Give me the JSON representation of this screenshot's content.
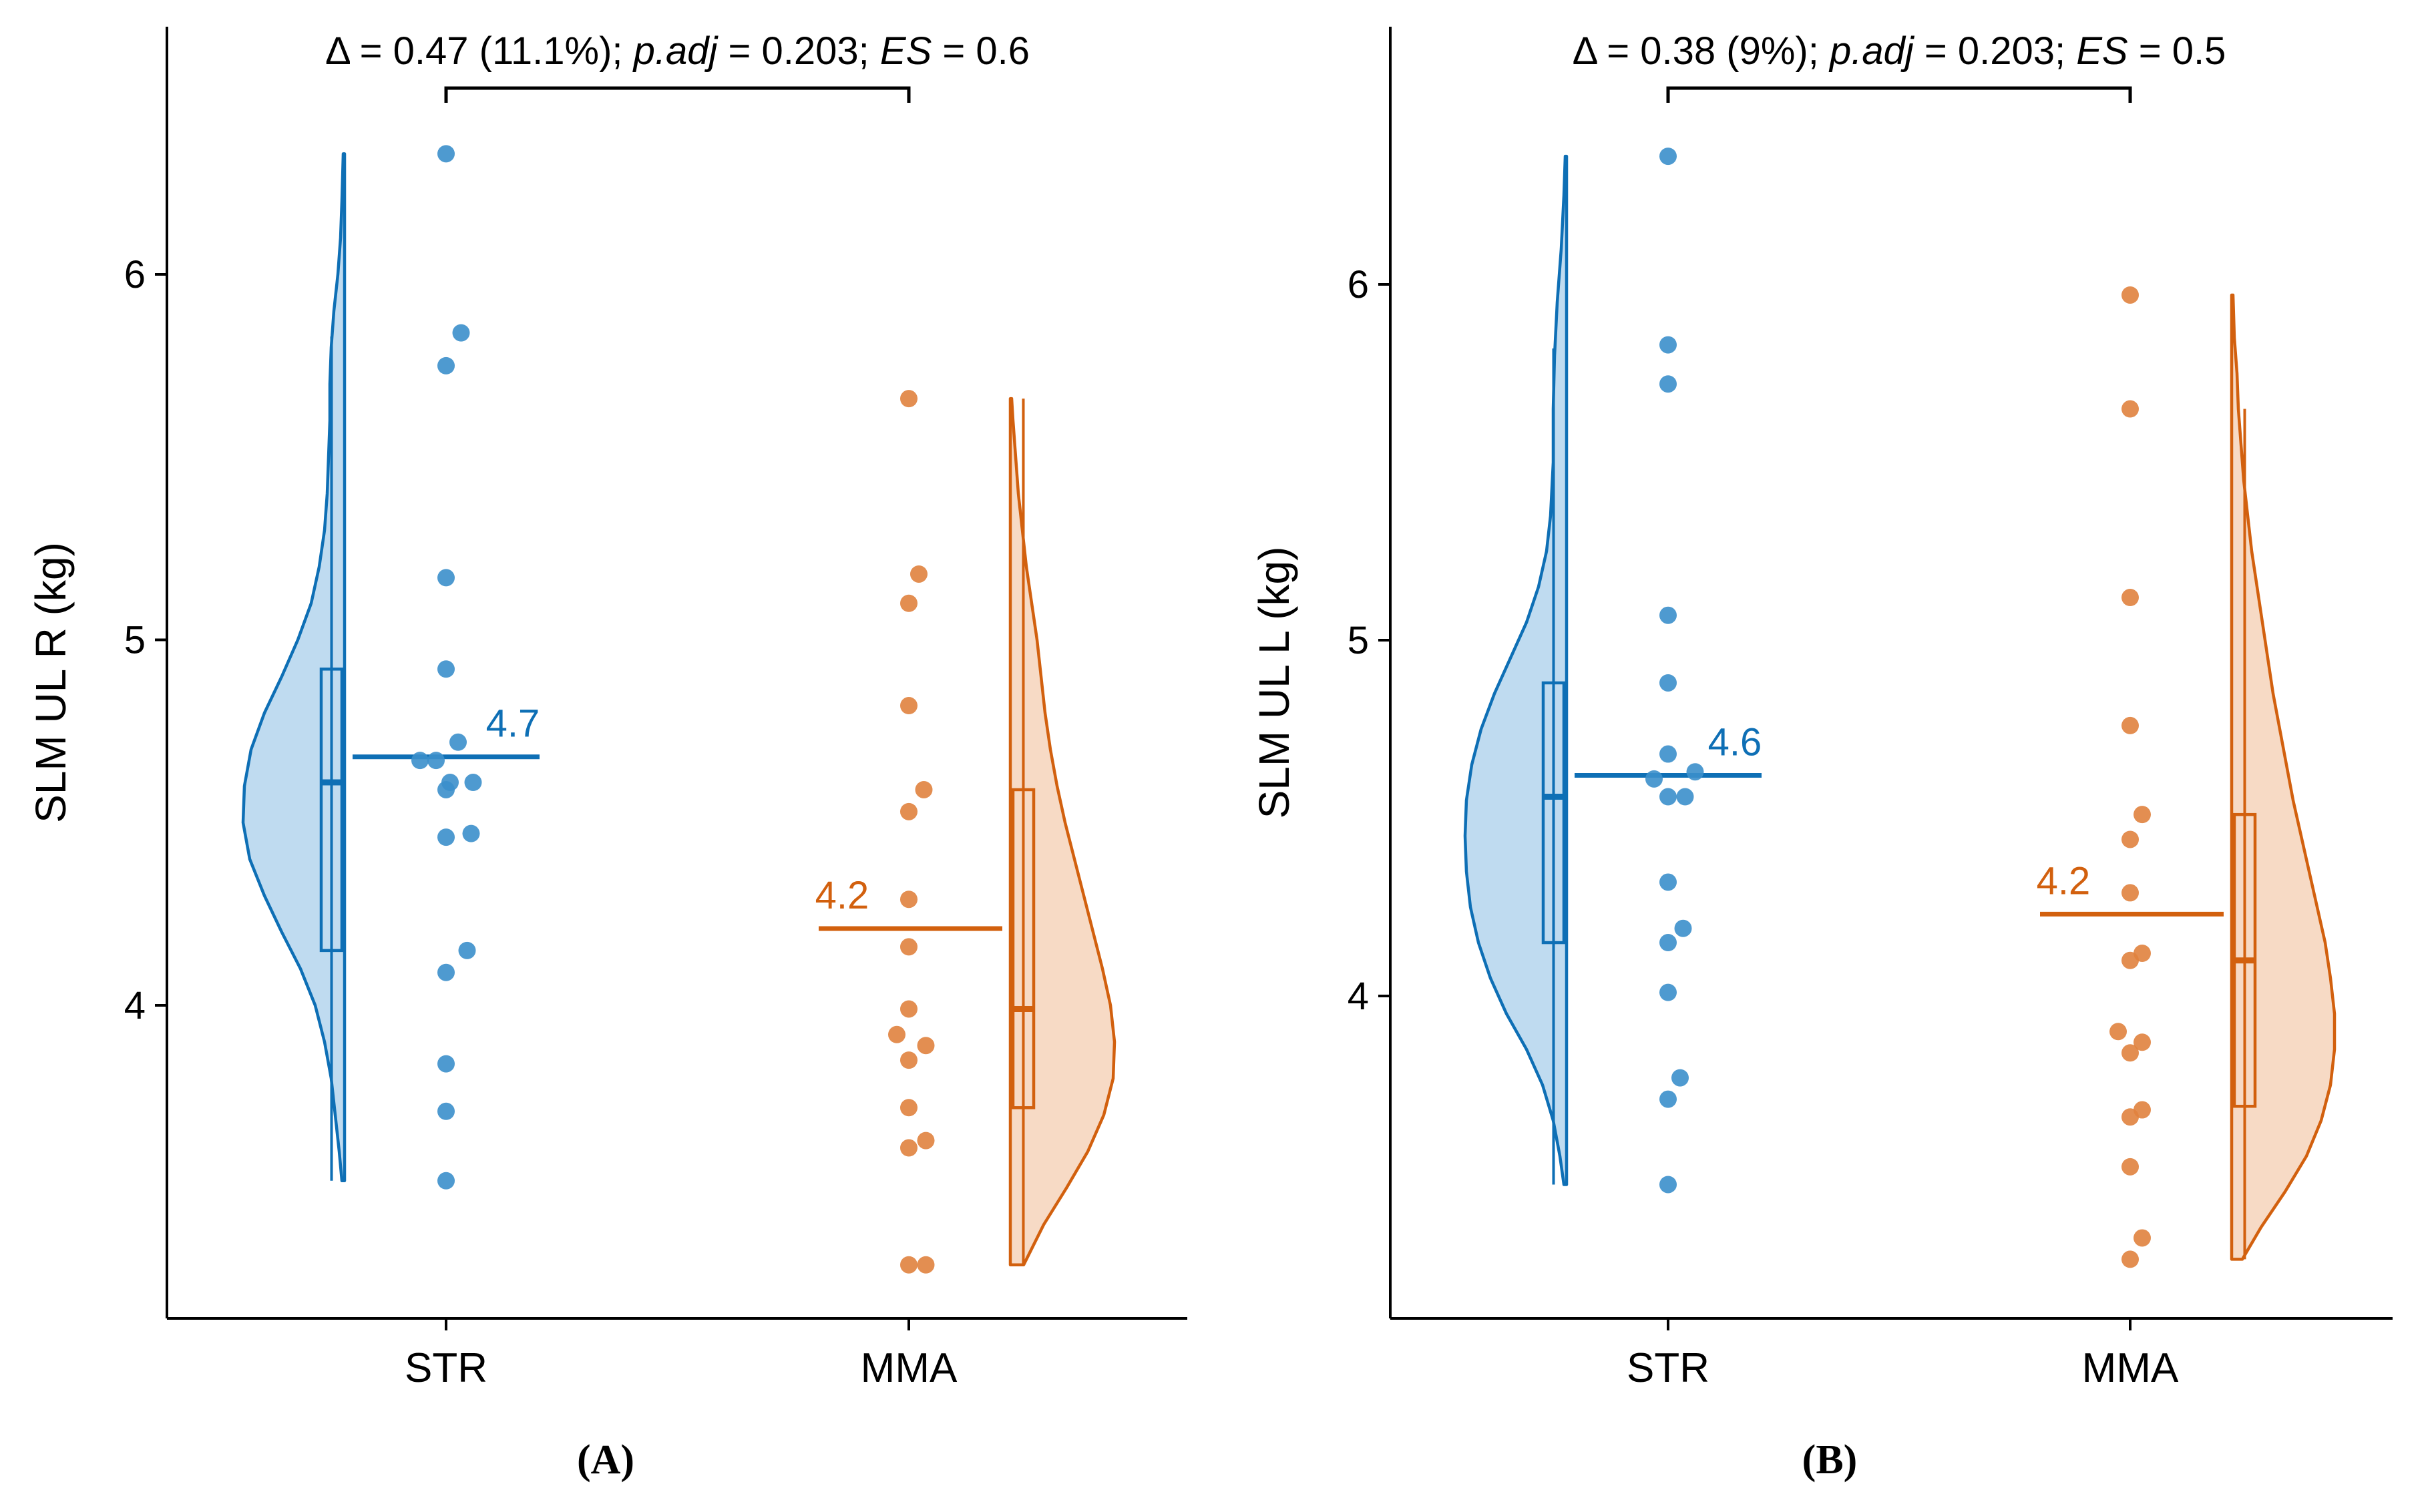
{
  "colors": {
    "str": "#0E6FB5",
    "str_fill": "#B8D7EE",
    "str_point": "#3B8FCB",
    "mma": "#D2600E",
    "mma_fill": "#F6D6BF",
    "mma_point": "#E0823E",
    "axis": "#000000"
  },
  "chart_data": [
    {
      "type": "raincloud",
      "panel": "A",
      "panel_label_open": "(",
      "panel_label_letter": "A",
      "panel_label_close": ")",
      "ylabel": "SLM UL R (kg)",
      "ylim": [
        3.15,
        6.65
      ],
      "yticks": [
        4,
        5,
        6
      ],
      "ytick_labels": [
        "4",
        "5",
        "6"
      ],
      "categories": [
        "STR",
        "MMA"
      ],
      "annotation": {
        "pre": "Δ = 0.47 (11.1%); ",
        "p_label": "p.adj",
        "mid": " = 0.203; ",
        "es_label": "ES",
        "post": " = 0.6"
      },
      "groups": [
        {
          "name": "STR",
          "mean": 4.68,
          "mean_label": "4.7",
          "box": {
            "q1": 4.15,
            "median": 4.61,
            "q3": 4.92,
            "whisker_low": 3.52,
            "whisker_high": 5.83
          },
          "range": [
            3.52,
            6.33
          ],
          "density": [
            [
              3.52,
              0.02
            ],
            [
              3.6,
              0.04
            ],
            [
              3.7,
              0.07
            ],
            [
              3.8,
              0.1
            ],
            [
              3.9,
              0.15
            ],
            [
              4.0,
              0.22
            ],
            [
              4.1,
              0.33
            ],
            [
              4.2,
              0.47
            ],
            [
              4.3,
              0.6
            ],
            [
              4.4,
              0.71
            ],
            [
              4.5,
              0.76
            ],
            [
              4.6,
              0.75
            ],
            [
              4.7,
              0.7
            ],
            [
              4.8,
              0.6
            ],
            [
              4.9,
              0.47
            ],
            [
              5.0,
              0.35
            ],
            [
              5.1,
              0.25
            ],
            [
              5.2,
              0.19
            ],
            [
              5.3,
              0.15
            ],
            [
              5.4,
              0.13
            ],
            [
              5.5,
              0.12
            ],
            [
              5.6,
              0.11
            ],
            [
              5.7,
              0.11
            ],
            [
              5.8,
              0.1
            ],
            [
              5.9,
              0.08
            ],
            [
              6.0,
              0.05
            ],
            [
              6.1,
              0.03
            ],
            [
              6.2,
              0.02
            ],
            [
              6.33,
              0.01
            ]
          ],
          "points": [
            {
              "y": 6.33,
              "j": 0
            },
            {
              "y": 5.84,
              "j": 0.15
            },
            {
              "y": 5.75,
              "j": 0
            },
            {
              "y": 5.17,
              "j": 0
            },
            {
              "y": 4.92,
              "j": 0
            },
            {
              "y": 4.72,
              "j": 0.12
            },
            {
              "y": 4.67,
              "j": -0.26
            },
            {
              "y": 4.67,
              "j": -0.1
            },
            {
              "y": 4.61,
              "j": 0.04
            },
            {
              "y": 4.61,
              "j": 0.27
            },
            {
              "y": 4.59,
              "j": 0
            },
            {
              "y": 4.47,
              "j": 0.25
            },
            {
              "y": 4.46,
              "j": 0
            },
            {
              "y": 4.15,
              "j": 0.21
            },
            {
              "y": 4.09,
              "j": 0
            },
            {
              "y": 3.84,
              "j": 0
            },
            {
              "y": 3.71,
              "j": 0
            },
            {
              "y": 3.52,
              "j": 0
            }
          ]
        },
        {
          "name": "MMA",
          "mean": 4.21,
          "mean_label": "4.2",
          "box": {
            "q1": 3.72,
            "median": 3.99,
            "q3": 4.59,
            "whisker_low": 3.29,
            "whisker_high": 5.66
          },
          "range": [
            3.29,
            5.66
          ],
          "density": [
            [
              3.29,
              0.1
            ],
            [
              3.4,
              0.25
            ],
            [
              3.5,
              0.42
            ],
            [
              3.6,
              0.58
            ],
            [
              3.7,
              0.7
            ],
            [
              3.8,
              0.77
            ],
            [
              3.9,
              0.78
            ],
            [
              4.0,
              0.75
            ],
            [
              4.1,
              0.69
            ],
            [
              4.2,
              0.62
            ],
            [
              4.3,
              0.55
            ],
            [
              4.4,
              0.48
            ],
            [
              4.5,
              0.41
            ],
            [
              4.6,
              0.35
            ],
            [
              4.7,
              0.3
            ],
            [
              4.8,
              0.26
            ],
            [
              4.9,
              0.23
            ],
            [
              5.0,
              0.2
            ],
            [
              5.1,
              0.16
            ],
            [
              5.2,
              0.12
            ],
            [
              5.3,
              0.09
            ],
            [
              5.4,
              0.06
            ],
            [
              5.5,
              0.04
            ],
            [
              5.6,
              0.02
            ],
            [
              5.66,
              0.01
            ]
          ],
          "points": [
            {
              "y": 5.66,
              "j": 0
            },
            {
              "y": 5.18,
              "j": 0.1
            },
            {
              "y": 5.1,
              "j": 0
            },
            {
              "y": 4.82,
              "j": 0
            },
            {
              "y": 4.59,
              "j": 0.15
            },
            {
              "y": 4.53,
              "j": 0
            },
            {
              "y": 4.29,
              "j": 0
            },
            {
              "y": 4.16,
              "j": 0
            },
            {
              "y": 3.99,
              "j": 0
            },
            {
              "y": 3.92,
              "j": -0.12
            },
            {
              "y": 3.89,
              "j": 0.17
            },
            {
              "y": 3.85,
              "j": 0
            },
            {
              "y": 3.72,
              "j": 0
            },
            {
              "y": 3.63,
              "j": 0.17
            },
            {
              "y": 3.61,
              "j": 0
            },
            {
              "y": 3.29,
              "j": 0
            },
            {
              "y": 3.29,
              "j": 0.17
            }
          ]
        }
      ]
    },
    {
      "type": "raincloud",
      "panel": "B",
      "panel_label_open": "(",
      "panel_label_letter": "B",
      "panel_label_close": ")",
      "ylabel": "SLM UL L (kg)",
      "ylim": [
        3.1,
        6.7
      ],
      "yticks": [
        4,
        5,
        6
      ],
      "ytick_labels": [
        "4",
        "5",
        "6"
      ],
      "categories": [
        "STR",
        "MMA"
      ],
      "annotation": {
        "pre": "Δ = 0.38 (9%); ",
        "p_label": "p.adj",
        "mid": " = 0.203; ",
        "es_label": "ES",
        "post": " = 0.5"
      },
      "groups": [
        {
          "name": "STR",
          "mean": 4.62,
          "mean_label": "4.6",
          "box": {
            "q1": 4.15,
            "median": 4.56,
            "q3": 4.88,
            "whisker_low": 3.47,
            "whisker_high": 5.82
          },
          "range": [
            3.47,
            6.36
          ],
          "density": [
            [
              3.47,
              0.02
            ],
            [
              3.55,
              0.05
            ],
            [
              3.65,
              0.1
            ],
            [
              3.75,
              0.18
            ],
            [
              3.85,
              0.3
            ],
            [
              3.95,
              0.45
            ],
            [
              4.05,
              0.57
            ],
            [
              4.15,
              0.66
            ],
            [
              4.25,
              0.72
            ],
            [
              4.35,
              0.75
            ],
            [
              4.45,
              0.76
            ],
            [
              4.55,
              0.75
            ],
            [
              4.65,
              0.71
            ],
            [
              4.75,
              0.64
            ],
            [
              4.85,
              0.54
            ],
            [
              4.95,
              0.42
            ],
            [
              5.05,
              0.3
            ],
            [
              5.15,
              0.21
            ],
            [
              5.25,
              0.15
            ],
            [
              5.35,
              0.12
            ],
            [
              5.5,
              0.1
            ],
            [
              5.65,
              0.1
            ],
            [
              5.8,
              0.09
            ],
            [
              5.95,
              0.07
            ],
            [
              6.1,
              0.04
            ],
            [
              6.25,
              0.02
            ],
            [
              6.36,
              0.01
            ]
          ],
          "points": [
            {
              "y": 6.36,
              "j": 0
            },
            {
              "y": 5.83,
              "j": 0
            },
            {
              "y": 5.72,
              "j": 0
            },
            {
              "y": 5.07,
              "j": 0
            },
            {
              "y": 4.88,
              "j": 0
            },
            {
              "y": 4.68,
              "j": 0
            },
            {
              "y": 4.63,
              "j": 0.27
            },
            {
              "y": 4.61,
              "j": -0.14
            },
            {
              "y": 4.56,
              "j": 0
            },
            {
              "y": 4.56,
              "j": 0.17
            },
            {
              "y": 4.32,
              "j": 0
            },
            {
              "y": 4.19,
              "j": 0.15
            },
            {
              "y": 4.15,
              "j": 0
            },
            {
              "y": 4.01,
              "j": 0
            },
            {
              "y": 3.77,
              "j": 0.12
            },
            {
              "y": 3.71,
              "j": 0
            },
            {
              "y": 3.47,
              "j": 0
            }
          ]
        },
        {
          "name": "MMA",
          "mean": 4.23,
          "mean_label": "4.2",
          "box": {
            "q1": 3.69,
            "median": 4.1,
            "q3": 4.51,
            "whisker_low": 3.26,
            "whisker_high": 5.65
          },
          "range": [
            3.26,
            5.97
          ],
          "density": [
            [
              3.26,
              0.08
            ],
            [
              3.35,
              0.22
            ],
            [
              3.45,
              0.4
            ],
            [
              3.55,
              0.56
            ],
            [
              3.65,
              0.67
            ],
            [
              3.75,
              0.74
            ],
            [
              3.85,
              0.77
            ],
            [
              3.95,
              0.77
            ],
            [
              4.05,
              0.74
            ],
            [
              4.15,
              0.7
            ],
            [
              4.25,
              0.64
            ],
            [
              4.35,
              0.58
            ],
            [
              4.45,
              0.52
            ],
            [
              4.55,
              0.46
            ],
            [
              4.65,
              0.41
            ],
            [
              4.75,
              0.36
            ],
            [
              4.85,
              0.31
            ],
            [
              4.95,
              0.27
            ],
            [
              5.05,
              0.23
            ],
            [
              5.15,
              0.19
            ],
            [
              5.25,
              0.15
            ],
            [
              5.35,
              0.12
            ],
            [
              5.45,
              0.09
            ],
            [
              5.55,
              0.07
            ],
            [
              5.65,
              0.05
            ],
            [
              5.75,
              0.04
            ],
            [
              5.85,
              0.02
            ],
            [
              5.97,
              0.01
            ]
          ],
          "points": [
            {
              "y": 5.97,
              "j": 0
            },
            {
              "y": 5.65,
              "j": 0
            },
            {
              "y": 5.12,
              "j": 0
            },
            {
              "y": 4.76,
              "j": 0
            },
            {
              "y": 4.51,
              "j": 0.12
            },
            {
              "y": 4.44,
              "j": 0
            },
            {
              "y": 4.29,
              "j": 0
            },
            {
              "y": 4.12,
              "j": 0.12
            },
            {
              "y": 4.1,
              "j": 0
            },
            {
              "y": 3.9,
              "j": -0.12
            },
            {
              "y": 3.87,
              "j": 0.12
            },
            {
              "y": 3.84,
              "j": 0
            },
            {
              "y": 3.68,
              "j": 0.12
            },
            {
              "y": 3.66,
              "j": 0
            },
            {
              "y": 3.52,
              "j": 0
            },
            {
              "y": 3.32,
              "j": 0.12
            },
            {
              "y": 3.26,
              "j": 0
            }
          ]
        }
      ]
    }
  ]
}
